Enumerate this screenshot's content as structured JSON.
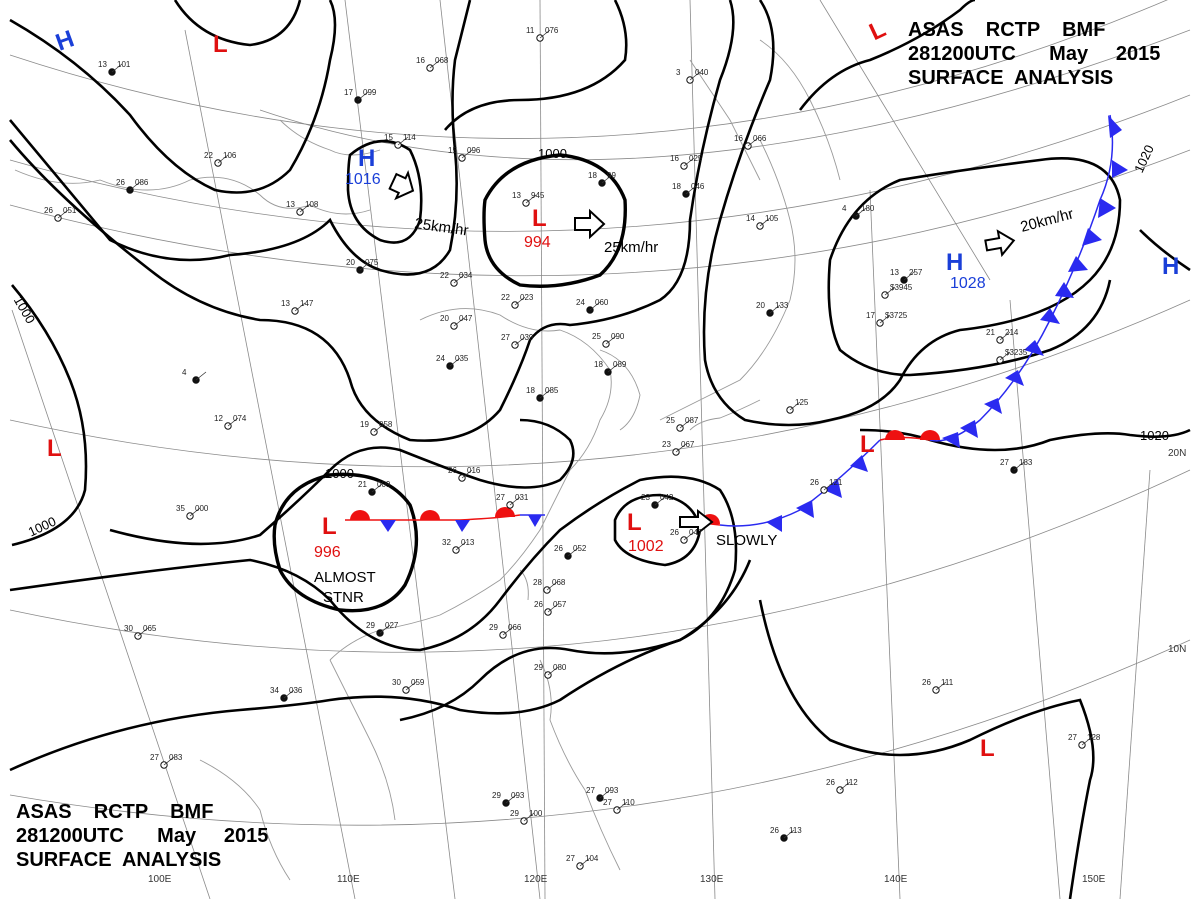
{
  "title": {
    "line1": "ASAS    RCTP    BMF",
    "line2": "281200UTC      May     2015",
    "line3": "SURFACE  ANALYSIS"
  },
  "colors": {
    "low": "#e01010",
    "high": "#1a3fd8",
    "cold_front": "#2a2af0",
    "warm_front": "#ee1111",
    "isobar": "#000000",
    "grid": "#8a8a8a"
  },
  "lon_labels": [
    "100E",
    "110E",
    "120E",
    "130E",
    "140E",
    "150E"
  ],
  "lat_labels": [
    "20N",
    "10N"
  ],
  "isobar_labels": [
    "1000",
    "1000",
    "1000",
    "1000",
    "1020",
    "1020"
  ],
  "pressure_systems": [
    {
      "type": "H",
      "value": ""
    },
    {
      "type": "L",
      "value": ""
    },
    {
      "type": "H",
      "value": "1016"
    },
    {
      "type": "L",
      "value": "994"
    },
    {
      "type": "H",
      "value": "1028"
    },
    {
      "type": "H",
      "value": ""
    },
    {
      "type": "L",
      "value": ""
    },
    {
      "type": "L",
      "value": "996"
    },
    {
      "type": "L",
      "value": "1002"
    },
    {
      "type": "L",
      "value": ""
    },
    {
      "type": "L",
      "value": ""
    },
    {
      "type": "L",
      "value": ""
    }
  ],
  "motion_labels": [
    "25km/hr",
    "25km/hr",
    "20km/hr",
    "SLOWLY",
    "ALMOST",
    "STNR"
  ],
  "stations": [
    {
      "t": "13",
      "p": "101"
    },
    {
      "t": "16",
      "p": "068"
    },
    {
      "t": "11",
      "p": "076"
    },
    {
      "t": "17",
      "p": "099"
    },
    {
      "t": "15",
      "p": "114"
    },
    {
      "t": "22",
      "p": "106"
    },
    {
      "t": "26",
      "p": "086"
    },
    {
      "t": "26",
      "p": "051"
    },
    {
      "t": "13",
      "p": "108"
    },
    {
      "t": "20",
      "p": "075"
    },
    {
      "t": "15",
      "p": "096"
    },
    {
      "t": "13",
      "p": "945"
    },
    {
      "t": "18",
      "p": "99"
    },
    {
      "t": "16",
      "p": "025"
    },
    {
      "t": "16",
      "p": "066"
    },
    {
      "t": "18",
      "p": "046"
    },
    {
      "t": "3",
      "p": "040"
    },
    {
      "t": "14",
      "p": "105"
    },
    {
      "t": "20",
      "p": "133"
    },
    {
      "t": "22",
      "p": "034"
    },
    {
      "t": "22",
      "p": "023"
    },
    {
      "t": "24",
      "p": "060"
    },
    {
      "t": "20",
      "p": "047"
    },
    {
      "t": "27",
      "p": "039"
    },
    {
      "t": "24",
      "p": "035"
    },
    {
      "t": "25",
      "p": "090"
    },
    {
      "t": "13",
      "p": "147"
    },
    {
      "t": "18",
      "p": "085"
    },
    {
      "t": "19",
      "p": "058"
    },
    {
      "t": "12",
      "p": "074"
    },
    {
      "t": "18",
      "p": "089"
    },
    {
      "t": "25",
      "p": "087"
    },
    {
      "t": "23",
      "p": "067"
    },
    {
      "t": "4",
      "p": ""
    },
    {
      "t": "26",
      "p": "016"
    },
    {
      "t": "27",
      "p": "031"
    },
    {
      "t": "21",
      "p": "009"
    },
    {
      "t": "35",
      "p": "000"
    },
    {
      "t": "32",
      "p": "013"
    },
    {
      "t": "26",
      "p": "052"
    },
    {
      "t": "28",
      "p": "068"
    },
    {
      "t": "26",
      "p": "057"
    },
    {
      "t": "23",
      "p": "042"
    },
    {
      "t": "26",
      "p": "047"
    },
    {
      "t": "29",
      "p": "066"
    },
    {
      "t": "29",
      "p": "027"
    },
    {
      "t": "30",
      "p": "065"
    },
    {
      "t": "30",
      "p": "059"
    },
    {
      "t": "34",
      "p": "036"
    },
    {
      "t": "29",
      "p": "080"
    },
    {
      "t": "27",
      "p": "083"
    },
    {
      "t": "29",
      "p": "093"
    },
    {
      "t": "29",
      "p": "100"
    },
    {
      "t": "27",
      "p": "104"
    },
    {
      "t": "27",
      "p": "093"
    },
    {
      "t": "27",
      "p": "110"
    },
    {
      "t": "26",
      "p": "112"
    },
    {
      "t": "26",
      "p": "113"
    },
    {
      "t": "26",
      "p": "111"
    },
    {
      "t": "27",
      "p": "128"
    },
    {
      "t": "27",
      "p": "183"
    },
    {
      "t": "26",
      "p": "121"
    },
    {
      "t": "21",
      "p": "214"
    },
    {
      "t": "13",
      "p": "257"
    },
    {
      "t": "17",
      "p": "$3725"
    },
    {
      "t": "",
      "p": "$3945"
    },
    {
      "t": "4",
      "p": "180"
    },
    {
      "t": "",
      "p": "$3235"
    },
    {
      "t": "",
      "p": "125"
    }
  ]
}
